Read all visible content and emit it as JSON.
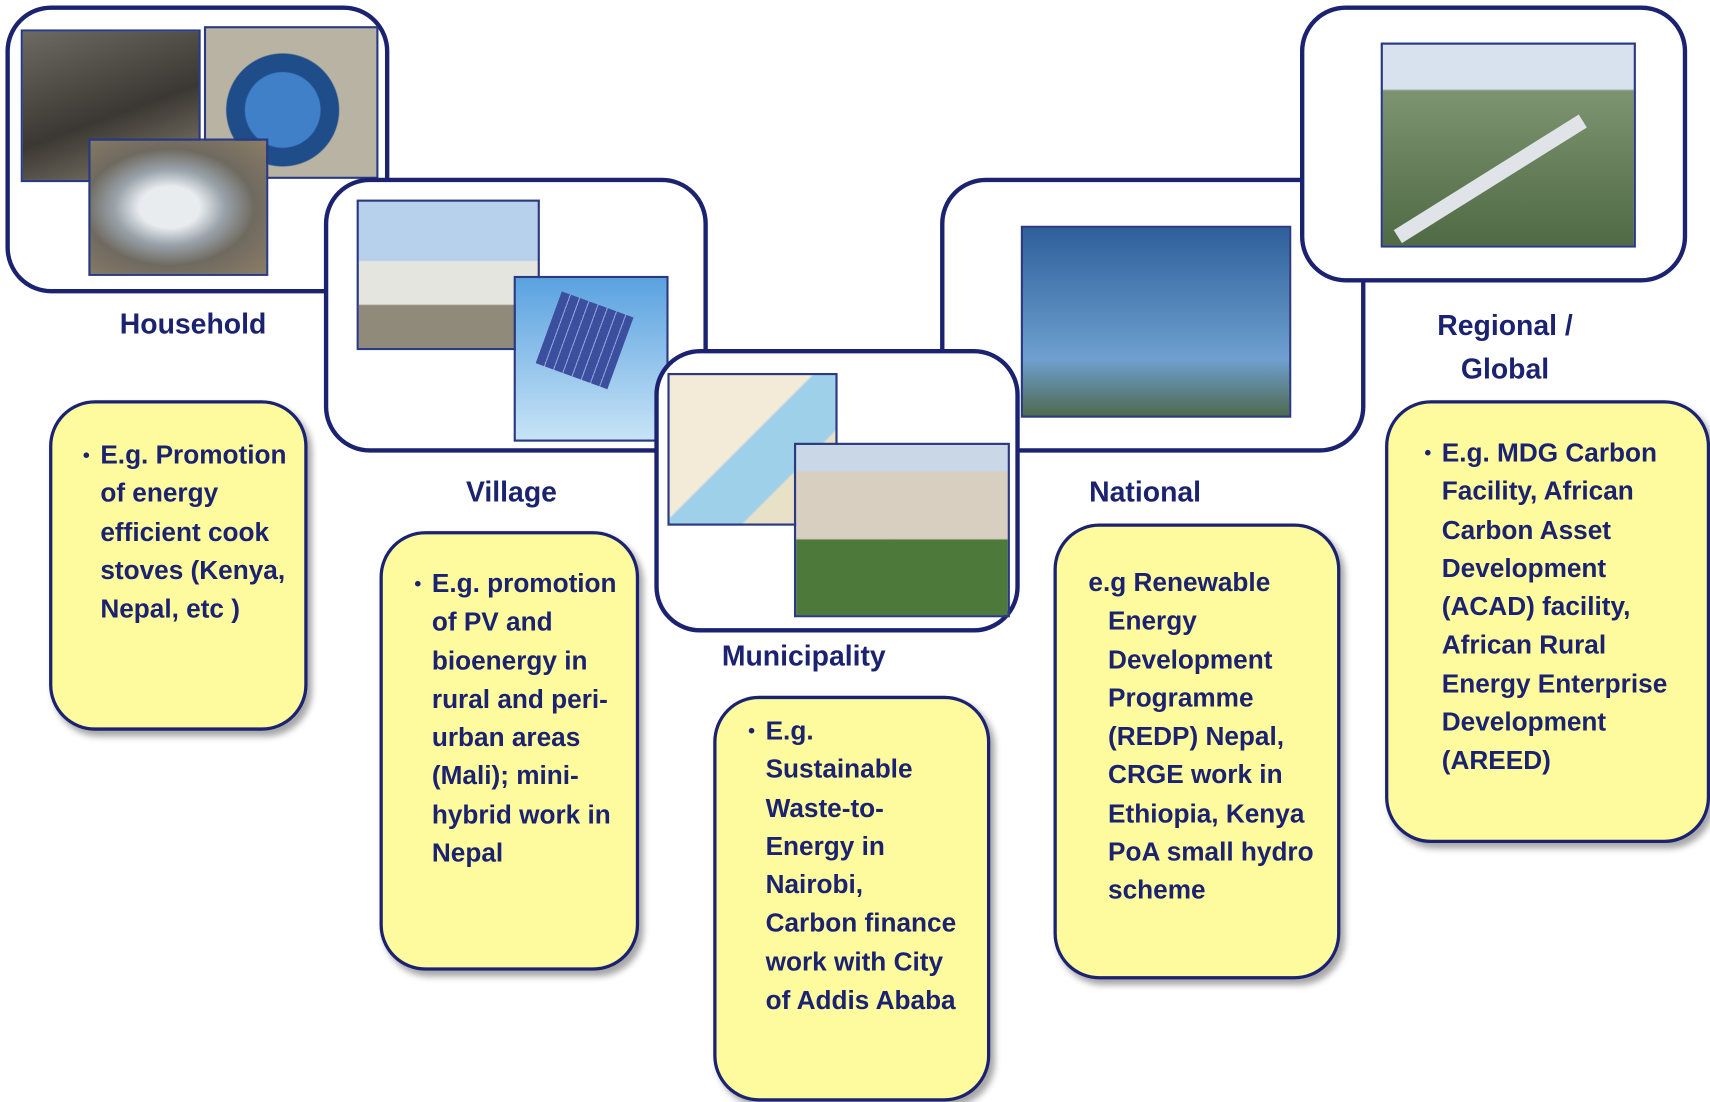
{
  "levels": [
    {
      "label": "Household",
      "description": "E.g. Promotion of energy efficient cook stoves (Kenya, Nepal, etc )"
    },
    {
      "label": "Village",
      "description": "E.g. promotion of PV and bioenergy in rural and peri-urban areas  (Mali); mini-hybrid work in Nepal"
    },
    {
      "label": "Municipality",
      "description": "E.g. Sustainable Waste-to-Energy  in Nairobi, Carbon finance work with City of Addis Ababa"
    },
    {
      "label": "National",
      "description": "e.g  Renewable Energy Development Programme (REDP)  Nepal, CRGE work in Ethiopia, Kenya  PoA small hydro scheme"
    },
    {
      "label": "Regional / Global",
      "description": "E.g. MDG Carbon Facility,  African Carbon Asset Development (ACAD) facility, African Rural Energy Enterprise Development (AREED)"
    }
  ]
}
